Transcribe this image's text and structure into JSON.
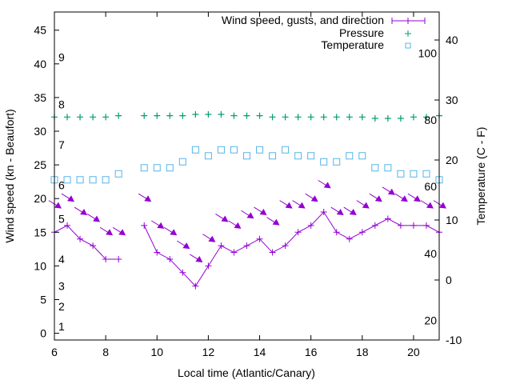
{
  "chart_data": {
    "type": "line",
    "xlabel": "Local time (Atlantic/Canary)",
    "ylabel": "Wind speed (kn - Beaufort)",
    "y2label": "Temperature (C - F)",
    "xlim": [
      6,
      21
    ],
    "ylim": [
      -1,
      47.7
    ],
    "y2lim": [
      -10,
      44.67
    ],
    "xticks": [
      6,
      8,
      10,
      12,
      14,
      16,
      18,
      20
    ],
    "yticks": [
      0,
      5,
      10,
      15,
      20,
      25,
      30,
      35,
      40,
      45
    ],
    "y2ticks": [
      -10,
      0,
      10,
      20,
      30,
      40
    ],
    "beaufort_labels": [
      {
        "label": "1",
        "kn": 1
      },
      {
        "label": "2",
        "kn": 4
      },
      {
        "label": "3",
        "kn": 7
      },
      {
        "label": "4",
        "kn": 11
      },
      {
        "label": "5",
        "kn": 17
      },
      {
        "label": "6",
        "kn": 22
      },
      {
        "label": "7",
        "kn": 28
      },
      {
        "label": "8",
        "kn": 34
      },
      {
        "label": "9",
        "kn": 41
      }
    ],
    "fahrenheit_labels": [
      {
        "label": "20",
        "c": -6.7
      },
      {
        "label": "40",
        "c": 4.4
      },
      {
        "label": "60",
        "c": 15.6
      },
      {
        "label": "80",
        "c": 26.7
      },
      {
        "label": "100",
        "c": 37.8
      }
    ],
    "legend": {
      "placement": "top-right",
      "entries": [
        "Wind speed, gusts, and direction",
        "Pressure",
        "Temperature"
      ]
    },
    "colors": {
      "wind": "#9400d3",
      "pressure": "#009e73",
      "temperature": "#56b4e9"
    },
    "series": [
      {
        "name": "Wind speed, gusts, and direction",
        "x": [
          6,
          6.5,
          7,
          7.5,
          8,
          8.5,
          9.5,
          10,
          10.5,
          11,
          11.5,
          12,
          12.5,
          13,
          13.5,
          14,
          14.5,
          15,
          15.5,
          16,
          16.5,
          17,
          17.5,
          18,
          18.5,
          19,
          19.5,
          20,
          20.5,
          21
        ],
        "speed": [
          15,
          16,
          14,
          13,
          11,
          11,
          16,
          12,
          11,
          9,
          7,
          10,
          13,
          12,
          13,
          14,
          12,
          13,
          15,
          16,
          18,
          15,
          14,
          15,
          16,
          17,
          16,
          16,
          16,
          15
        ],
        "gust": [
          19,
          20,
          18,
          17,
          15,
          15,
          20,
          16,
          15,
          13,
          11,
          14,
          17,
          16,
          17.5,
          18,
          16.5,
          19,
          19,
          20,
          22,
          18,
          18,
          19,
          20,
          21,
          20,
          20,
          19,
          19
        ]
      },
      {
        "name": "Pressure",
        "x": [
          6,
          6.5,
          7,
          7.5,
          8,
          8.5,
          9.5,
          10,
          10.5,
          11,
          11.5,
          12,
          12.5,
          13,
          13.5,
          14,
          14.5,
          15,
          15.5,
          16,
          16.5,
          17,
          17.5,
          18,
          18.5,
          19,
          19.5,
          20,
          20.5,
          21
        ],
        "y": [
          32.1,
          32.1,
          32.1,
          32.1,
          32.1,
          32.3,
          32.3,
          32.3,
          32.3,
          32.3,
          32.5,
          32.5,
          32.5,
          32.3,
          32.3,
          32.3,
          32.1,
          32.1,
          32.1,
          32.1,
          32.1,
          32.1,
          32.1,
          32.1,
          31.9,
          31.9,
          31.9,
          32.1,
          32.1,
          32.3
        ]
      },
      {
        "name": "Temperature",
        "x": [
          6,
          6.5,
          7,
          7.5,
          8,
          8.5,
          9.5,
          10,
          10.5,
          11,
          11.5,
          12,
          12.5,
          13,
          13.5,
          14,
          14.5,
          15,
          15.5,
          16,
          16.5,
          17,
          17.5,
          18,
          18.5,
          19,
          19.5,
          20,
          20.5,
          21
        ],
        "y": [
          16.7,
          16.7,
          16.7,
          16.7,
          16.7,
          17.7,
          18.7,
          18.7,
          18.7,
          19.7,
          21.7,
          20.7,
          21.7,
          21.7,
          20.7,
          21.7,
          20.7,
          21.7,
          20.7,
          20.7,
          19.7,
          19.7,
          20.7,
          20.7,
          18.7,
          18.7,
          17.7,
          17.7,
          17.7,
          16.7
        ]
      }
    ]
  }
}
